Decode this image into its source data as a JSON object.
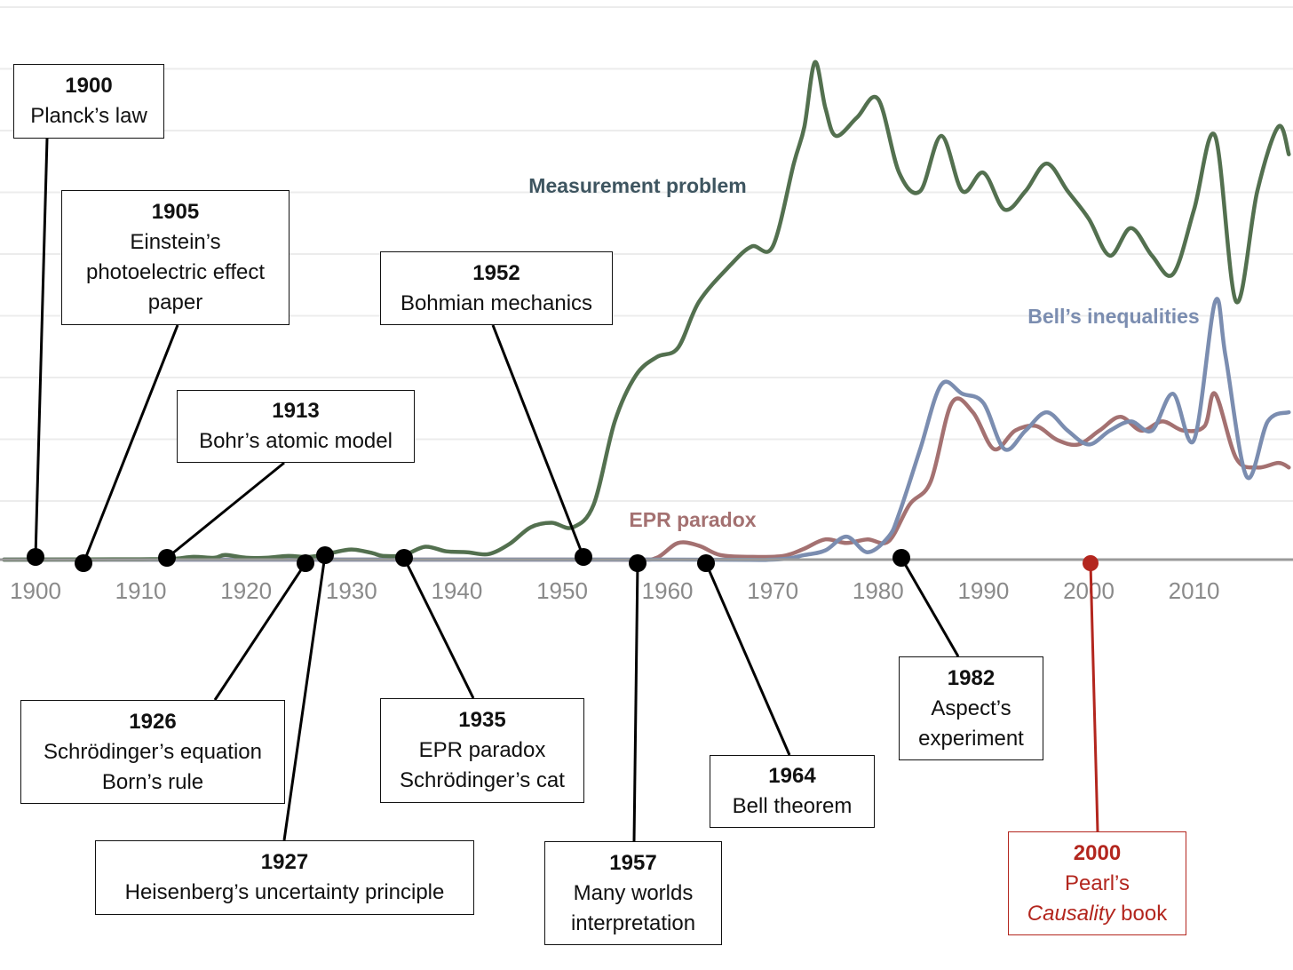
{
  "chart_data": {
    "type": "line",
    "x_range": [
      1897,
      2019
    ],
    "x_ticks": [
      "1900",
      "1910",
      "1920",
      "1930",
      "1940",
      "1950",
      "1960",
      "1970",
      "1980",
      "1990",
      "2000",
      "2010"
    ],
    "grid": true,
    "series": [
      {
        "name": "Measurement problem",
        "color": "#53704f",
        "label_color": "#3e5560",
        "points": [
          [
            1897,
            0
          ],
          [
            1905,
            0.3
          ],
          [
            1910,
            0.4
          ],
          [
            1913,
            0.8
          ],
          [
            1915,
            3
          ],
          [
            1917,
            2
          ],
          [
            1918,
            5
          ],
          [
            1920,
            2
          ],
          [
            1922,
            2
          ],
          [
            1924,
            4
          ],
          [
            1926,
            3
          ],
          [
            1928,
            7
          ],
          [
            1930,
            11
          ],
          [
            1932,
            7
          ],
          [
            1933,
            4
          ],
          [
            1935,
            5
          ],
          [
            1937,
            14
          ],
          [
            1939,
            9
          ],
          [
            1941,
            8
          ],
          [
            1943,
            6
          ],
          [
            1945,
            17
          ],
          [
            1947,
            35
          ],
          [
            1949,
            40
          ],
          [
            1951,
            35
          ],
          [
            1953,
            60
          ],
          [
            1955,
            150
          ],
          [
            1957,
            200
          ],
          [
            1959,
            220
          ],
          [
            1961,
            230
          ],
          [
            1963,
            280
          ],
          [
            1966,
            320
          ],
          [
            1968,
            340
          ],
          [
            1970,
            340
          ],
          [
            1972,
            430
          ],
          [
            1973,
            470
          ],
          [
            1974,
            540
          ],
          [
            1975,
            490
          ],
          [
            1976,
            460
          ],
          [
            1978,
            480
          ],
          [
            1980,
            500
          ],
          [
            1982,
            420
          ],
          [
            1984,
            400
          ],
          [
            1986,
            460
          ],
          [
            1988,
            400
          ],
          [
            1990,
            420
          ],
          [
            1992,
            380
          ],
          [
            1994,
            400
          ],
          [
            1996,
            430
          ],
          [
            1998,
            400
          ],
          [
            2000,
            370
          ],
          [
            2002,
            330
          ],
          [
            2004,
            360
          ],
          [
            2006,
            330
          ],
          [
            2008,
            310
          ],
          [
            2010,
            380
          ],
          [
            2012,
            460
          ],
          [
            2014,
            280
          ],
          [
            2016,
            400
          ],
          [
            2018,
            470
          ],
          [
            2019,
            440
          ]
        ]
      },
      {
        "name": "Bell’s inequalities",
        "color": "#7b8db0",
        "label_color": "#7b8db0",
        "points": [
          [
            1897,
            0
          ],
          [
            1960,
            0
          ],
          [
            1970,
            0
          ],
          [
            1973,
            5
          ],
          [
            1975,
            10
          ],
          [
            1977,
            25
          ],
          [
            1979,
            8
          ],
          [
            1981,
            25
          ],
          [
            1982,
            50
          ],
          [
            1984,
            120
          ],
          [
            1986,
            190
          ],
          [
            1988,
            180
          ],
          [
            1990,
            170
          ],
          [
            1992,
            120
          ],
          [
            1994,
            140
          ],
          [
            1996,
            160
          ],
          [
            1998,
            140
          ],
          [
            2000,
            125
          ],
          [
            2002,
            140
          ],
          [
            2004,
            150
          ],
          [
            2006,
            140
          ],
          [
            2008,
            180
          ],
          [
            2010,
            130
          ],
          [
            2012,
            280
          ],
          [
            2013,
            220
          ],
          [
            2015,
            90
          ],
          [
            2017,
            150
          ],
          [
            2019,
            160
          ]
        ]
      },
      {
        "name": "EPR paradox",
        "color": "#a47171",
        "label_color": "#a47171",
        "points": [
          [
            1897,
            0
          ],
          [
            1950,
            0
          ],
          [
            1957,
            0
          ],
          [
            1959,
            2
          ],
          [
            1961,
            18
          ],
          [
            1963,
            15
          ],
          [
            1965,
            5
          ],
          [
            1968,
            3
          ],
          [
            1971,
            4
          ],
          [
            1973,
            12
          ],
          [
            1975,
            22
          ],
          [
            1977,
            18
          ],
          [
            1979,
            22
          ],
          [
            1981,
            20
          ],
          [
            1983,
            60
          ],
          [
            1985,
            85
          ],
          [
            1987,
            170
          ],
          [
            1989,
            160
          ],
          [
            1991,
            120
          ],
          [
            1993,
            140
          ],
          [
            1995,
            145
          ],
          [
            1997,
            130
          ],
          [
            1999,
            125
          ],
          [
            2001,
            140
          ],
          [
            2003,
            155
          ],
          [
            2005,
            140
          ],
          [
            2007,
            150
          ],
          [
            2009,
            140
          ],
          [
            2011,
            145
          ],
          [
            2012,
            180
          ],
          [
            2014,
            110
          ],
          [
            2016,
            100
          ],
          [
            2018,
            105
          ],
          [
            2019,
            100
          ]
        ]
      }
    ],
    "events": [
      {
        "year": 1900,
        "title": "1900",
        "lines": [
          "Planck’s law"
        ],
        "color": "#000000"
      },
      {
        "year": 1905,
        "title": "1905",
        "lines": [
          "Einstein’s",
          "photoelectric effect",
          "paper"
        ],
        "color": "#000000"
      },
      {
        "year": 1913,
        "title": "1913",
        "lines": [
          "Bohr’s atomic model"
        ],
        "color": "#000000"
      },
      {
        "year": 1926,
        "title": "1926",
        "lines": [
          "Schrödinger’s equation",
          "Born’s rule"
        ],
        "color": "#000000"
      },
      {
        "year": 1927,
        "title": "1927",
        "lines": [
          "Heisenberg’s uncertainty principle"
        ],
        "color": "#000000"
      },
      {
        "year": 1935,
        "title": "1935",
        "lines": [
          "EPR paradox",
          "Schrödinger’s cat"
        ],
        "color": "#000000"
      },
      {
        "year": 1952,
        "title": "1952",
        "lines": [
          "Bohmian mechanics"
        ],
        "color": "#000000"
      },
      {
        "year": 1957,
        "title": "1957",
        "lines": [
          "Many worlds",
          "interpretation"
        ],
        "color": "#000000"
      },
      {
        "year": 1964,
        "title": "1964",
        "lines": [
          "Bell theorem"
        ],
        "color": "#000000"
      },
      {
        "year": 1982,
        "title": "1982",
        "lines": [
          "Aspect’s",
          "experiment"
        ],
        "color": "#000000"
      },
      {
        "year": 2000,
        "title": "2000",
        "lines": [
          "Pearl’s",
          "Causality book"
        ],
        "italic_word": "Causality",
        "color": "#b3261e"
      }
    ]
  }
}
